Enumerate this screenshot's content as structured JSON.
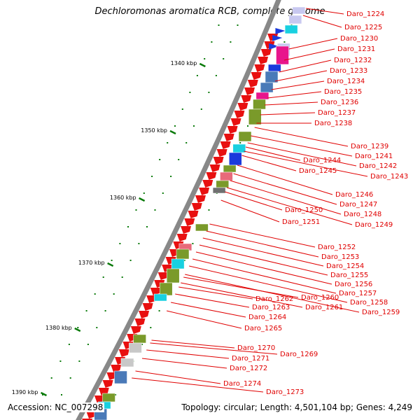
{
  "title": "Dechloromonas aromatica RCB, complete genome",
  "accession_text": "Accession: NC_007298",
  "topology_text": "Topology: circular; Length: 4,501,104 bp; Genes: 4,249",
  "tick_labels": [
    "1340 kbp",
    "1350 kbp",
    "1360 kbp",
    "1370 kbp",
    "1380 kbp",
    "1390 kbp"
  ],
  "gene_labels": [
    "Daro_1224",
    "Daro_1225",
    "Daro_1230",
    "Daro_1231",
    "Daro_1232",
    "Daro_1233",
    "Daro_1234",
    "Daro_1235",
    "Daro_1236",
    "Daro_1237",
    "Daro_1238",
    "Daro_1239",
    "Daro_1241",
    "Daro_1242",
    "Daro_1243",
    "Daro_1244",
    "Daro_1245",
    "Daro_1246",
    "Daro_1247",
    "Daro_1248",
    "Daro_1249",
    "Daro_1250",
    "Daro_1251",
    "Daro_1252",
    "Daro_1253",
    "Daro_1254",
    "Daro_1255",
    "Daro_1256",
    "Daro_1257",
    "Daro_1258",
    "Daro_1259",
    "Daro_1260",
    "Daro_1261",
    "Daro_1262",
    "Daro_1263",
    "Daro_1264",
    "Daro_1265",
    "Daro_1270",
    "Daro_1269",
    "Daro_1271",
    "Daro_1272",
    "Daro_1274",
    "Daro_1273"
  ],
  "colors": {
    "cds": "#e81010",
    "label": "#e00000",
    "backbone": "#888888",
    "tick": "#0a7a0a",
    "cog_green": "#7a9a2a",
    "cog_blue": "#1a3adc",
    "cog_cyan": "#18d0e0",
    "cog_magenta": "#e8168c",
    "cog_steel": "#4a7ab8",
    "cog_gray": "#c8c8c8",
    "cog_pink": "#e86a7a",
    "cog_dark": "#707070",
    "cog_lavender": "#c8c8f0"
  }
}
